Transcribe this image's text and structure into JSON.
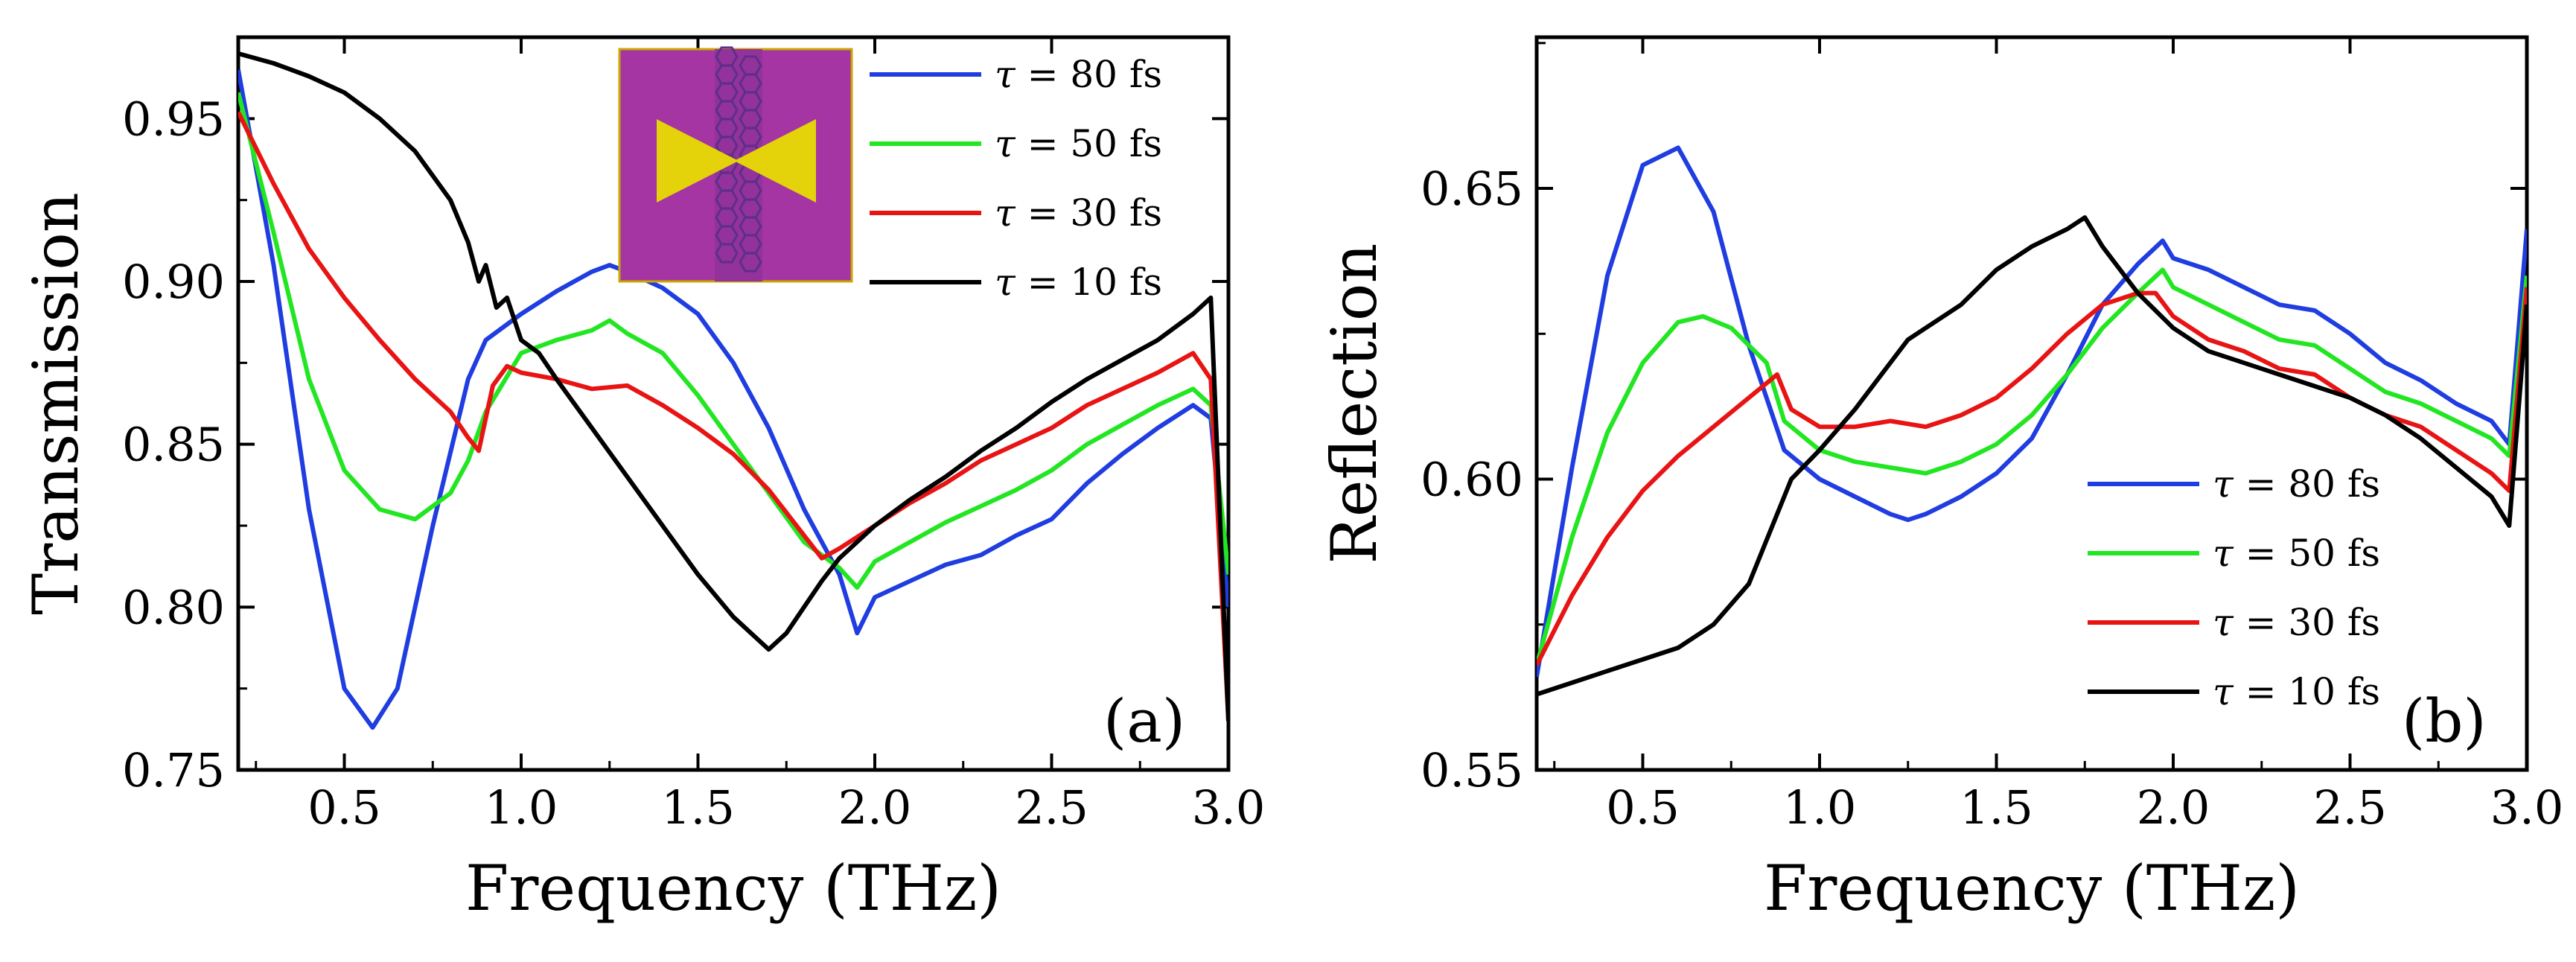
{
  "colors": {
    "blue": "#1f3de0",
    "green": "#22e622",
    "red": "#e81414",
    "black": "#000000",
    "inset_bg": "#a535a2",
    "inset_bowtie": "#e4d20b",
    "inset_tube": "#5e2f8a"
  },
  "chart_data": [
    {
      "type": "line",
      "panel_label": "(a)",
      "xlabel": "Frequency (THz)",
      "ylabel": "Transmission",
      "xlim": [
        0.2,
        3.0
      ],
      "ylim": [
        0.75,
        0.975
      ],
      "xticks": [
        0.5,
        1.0,
        1.5,
        2.0,
        2.5,
        3.0
      ],
      "xtick_labels": [
        "0.5",
        "1.0",
        "1.5",
        "2.0",
        "2.5",
        "3.0"
      ],
      "yticks": [
        0.75,
        0.8,
        0.85,
        0.9,
        0.95
      ],
      "ytick_labels": [
        "0.75",
        "0.80",
        "0.85",
        "0.90",
        "0.95"
      ],
      "legend_position": "top-right",
      "legend_prefix": "τ",
      "inset": "bowtie antenna on graphene nanoribbon (top-center)",
      "series": [
        {
          "name": "τ = 80 fs",
          "label": "= 80 fs",
          "color": "#1f3de0",
          "x": [
            0.2,
            0.3,
            0.4,
            0.5,
            0.58,
            0.65,
            0.75,
            0.85,
            0.9,
            1.0,
            1.1,
            1.2,
            1.25,
            1.3,
            1.4,
            1.5,
            1.6,
            1.7,
            1.8,
            1.9,
            1.95,
            2.0,
            2.1,
            2.2,
            2.3,
            2.4,
            2.5,
            2.6,
            2.7,
            2.8,
            2.9,
            2.95,
            3.0
          ],
          "y": [
            0.965,
            0.905,
            0.83,
            0.775,
            0.763,
            0.775,
            0.825,
            0.87,
            0.882,
            0.89,
            0.897,
            0.903,
            0.905,
            0.903,
            0.898,
            0.89,
            0.875,
            0.855,
            0.83,
            0.81,
            0.792,
            0.803,
            0.808,
            0.813,
            0.816,
            0.822,
            0.827,
            0.838,
            0.847,
            0.855,
            0.862,
            0.858,
            0.8
          ]
        },
        {
          "name": "τ = 50 fs",
          "label": "= 50 fs",
          "color": "#22e622",
          "x": [
            0.2,
            0.3,
            0.4,
            0.5,
            0.6,
            0.7,
            0.8,
            0.85,
            0.9,
            1.0,
            1.1,
            1.2,
            1.25,
            1.3,
            1.4,
            1.5,
            1.6,
            1.7,
            1.8,
            1.9,
            1.95,
            2.0,
            2.1,
            2.2,
            2.3,
            2.4,
            2.5,
            2.6,
            2.7,
            2.8,
            2.9,
            2.95,
            3.0
          ],
          "y": [
            0.958,
            0.915,
            0.87,
            0.842,
            0.83,
            0.827,
            0.835,
            0.845,
            0.86,
            0.878,
            0.882,
            0.885,
            0.888,
            0.884,
            0.878,
            0.865,
            0.85,
            0.835,
            0.82,
            0.812,
            0.806,
            0.814,
            0.82,
            0.826,
            0.831,
            0.836,
            0.842,
            0.85,
            0.856,
            0.862,
            0.867,
            0.862,
            0.81
          ]
        },
        {
          "name": "τ = 30 fs",
          "label": "= 30 fs",
          "color": "#e81414",
          "x": [
            0.2,
            0.3,
            0.4,
            0.5,
            0.6,
            0.7,
            0.8,
            0.85,
            0.88,
            0.92,
            0.96,
            1.0,
            1.1,
            1.2,
            1.3,
            1.4,
            1.5,
            1.6,
            1.7,
            1.8,
            1.85,
            1.9,
            2.0,
            2.1,
            2.2,
            2.3,
            2.4,
            2.5,
            2.6,
            2.7,
            2.8,
            2.9,
            2.95,
            3.0
          ],
          "y": [
            0.952,
            0.93,
            0.91,
            0.895,
            0.882,
            0.87,
            0.86,
            0.852,
            0.848,
            0.868,
            0.874,
            0.872,
            0.87,
            0.867,
            0.868,
            0.862,
            0.855,
            0.847,
            0.836,
            0.822,
            0.815,
            0.818,
            0.825,
            0.832,
            0.838,
            0.845,
            0.85,
            0.855,
            0.862,
            0.867,
            0.872,
            0.878,
            0.87,
            0.765
          ]
        },
        {
          "name": "τ = 10 fs",
          "label": "= 10 fs",
          "color": "#000000",
          "x": [
            0.2,
            0.3,
            0.4,
            0.5,
            0.6,
            0.7,
            0.8,
            0.85,
            0.88,
            0.9,
            0.93,
            0.96,
            1.0,
            1.05,
            1.1,
            1.2,
            1.3,
            1.4,
            1.5,
            1.6,
            1.7,
            1.75,
            1.8,
            1.85,
            1.9,
            2.0,
            2.1,
            2.2,
            2.3,
            2.4,
            2.5,
            2.6,
            2.7,
            2.8,
            2.9,
            2.95,
            3.0
          ],
          "y": [
            0.97,
            0.967,
            0.963,
            0.958,
            0.95,
            0.94,
            0.925,
            0.912,
            0.9,
            0.905,
            0.892,
            0.895,
            0.882,
            0.878,
            0.87,
            0.855,
            0.84,
            0.825,
            0.81,
            0.797,
            0.787,
            0.792,
            0.8,
            0.808,
            0.815,
            0.825,
            0.833,
            0.84,
            0.848,
            0.855,
            0.863,
            0.87,
            0.876,
            0.882,
            0.89,
            0.895,
            0.765
          ]
        }
      ]
    },
    {
      "type": "line",
      "panel_label": "(b)",
      "xlabel": "Frequency (THz)",
      "ylabel": "Reflection",
      "xlim": [
        0.2,
        3.0
      ],
      "ylim": [
        0.55,
        0.676
      ],
      "xticks": [
        0.5,
        1.0,
        1.5,
        2.0,
        2.5,
        3.0
      ],
      "xtick_labels": [
        "0.5",
        "1.0",
        "1.5",
        "2.0",
        "2.5",
        "3.0"
      ],
      "yticks": [
        0.55,
        0.6,
        0.65
      ],
      "ytick_labels": [
        "0.55",
        "0.60",
        "0.65"
      ],
      "legend_position": "lower-right",
      "legend_prefix": "τ",
      "series": [
        {
          "name": "τ = 80 fs",
          "label": "= 80 fs",
          "color": "#1f3de0",
          "x": [
            0.2,
            0.3,
            0.4,
            0.5,
            0.6,
            0.7,
            0.8,
            0.9,
            1.0,
            1.1,
            1.2,
            1.25,
            1.3,
            1.4,
            1.5,
            1.6,
            1.7,
            1.8,
            1.9,
            1.97,
            2.0,
            2.1,
            2.2,
            2.3,
            2.4,
            2.5,
            2.6,
            2.7,
            2.8,
            2.9,
            2.95,
            3.0
          ],
          "y": [
            0.566,
            0.602,
            0.635,
            0.654,
            0.657,
            0.646,
            0.623,
            0.605,
            0.6,
            0.597,
            0.594,
            0.593,
            0.594,
            0.597,
            0.601,
            0.607,
            0.618,
            0.63,
            0.637,
            0.641,
            0.638,
            0.636,
            0.633,
            0.63,
            0.629,
            0.625,
            0.62,
            0.617,
            0.613,
            0.61,
            0.606,
            0.643
          ]
        },
        {
          "name": "τ = 50 fs",
          "label": "= 50 fs",
          "color": "#22e622",
          "x": [
            0.2,
            0.3,
            0.4,
            0.5,
            0.6,
            0.67,
            0.75,
            0.85,
            0.9,
            1.0,
            1.1,
            1.2,
            1.3,
            1.4,
            1.5,
            1.6,
            1.7,
            1.8,
            1.9,
            1.97,
            2.0,
            2.1,
            2.2,
            2.3,
            2.4,
            2.5,
            2.6,
            2.7,
            2.8,
            2.9,
            2.95,
            3.0
          ],
          "y": [
            0.568,
            0.59,
            0.608,
            0.62,
            0.627,
            0.628,
            0.626,
            0.62,
            0.61,
            0.605,
            0.603,
            0.602,
            0.601,
            0.603,
            0.606,
            0.611,
            0.618,
            0.626,
            0.632,
            0.636,
            0.633,
            0.63,
            0.627,
            0.624,
            0.623,
            0.619,
            0.615,
            0.613,
            0.61,
            0.607,
            0.604,
            0.635
          ]
        },
        {
          "name": "τ = 30 fs",
          "label": "= 30 fs",
          "color": "#e81414",
          "x": [
            0.2,
            0.3,
            0.4,
            0.5,
            0.6,
            0.7,
            0.8,
            0.88,
            0.92,
            1.0,
            1.1,
            1.2,
            1.3,
            1.4,
            1.5,
            1.6,
            1.7,
            1.8,
            1.9,
            1.95,
            2.0,
            2.1,
            2.2,
            2.3,
            2.4,
            2.5,
            2.6,
            2.7,
            2.8,
            2.9,
            2.95,
            3.0
          ],
          "y": [
            0.568,
            0.58,
            0.59,
            0.598,
            0.604,
            0.609,
            0.614,
            0.618,
            0.612,
            0.609,
            0.609,
            0.61,
            0.609,
            0.611,
            0.614,
            0.619,
            0.625,
            0.63,
            0.632,
            0.632,
            0.628,
            0.624,
            0.622,
            0.619,
            0.618,
            0.614,
            0.611,
            0.609,
            0.605,
            0.601,
            0.598,
            0.633
          ]
        },
        {
          "name": "τ = 10 fs",
          "label": "= 10 fs",
          "color": "#000000",
          "x": [
            0.2,
            0.3,
            0.4,
            0.5,
            0.6,
            0.7,
            0.8,
            0.9,
            0.92,
            1.0,
            1.1,
            1.2,
            1.25,
            1.3,
            1.4,
            1.5,
            1.6,
            1.7,
            1.75,
            1.8,
            1.9,
            2.0,
            2.1,
            2.2,
            2.3,
            2.4,
            2.5,
            2.6,
            2.7,
            2.8,
            2.9,
            2.95,
            3.0
          ],
          "y": [
            0.563,
            0.565,
            0.567,
            0.569,
            0.571,
            0.575,
            0.582,
            0.597,
            0.6,
            0.605,
            0.612,
            0.62,
            0.624,
            0.626,
            0.63,
            0.636,
            0.64,
            0.643,
            0.645,
            0.64,
            0.632,
            0.626,
            0.622,
            0.62,
            0.618,
            0.616,
            0.614,
            0.611,
            0.607,
            0.602,
            0.597,
            0.592,
            0.63
          ]
        }
      ]
    }
  ]
}
